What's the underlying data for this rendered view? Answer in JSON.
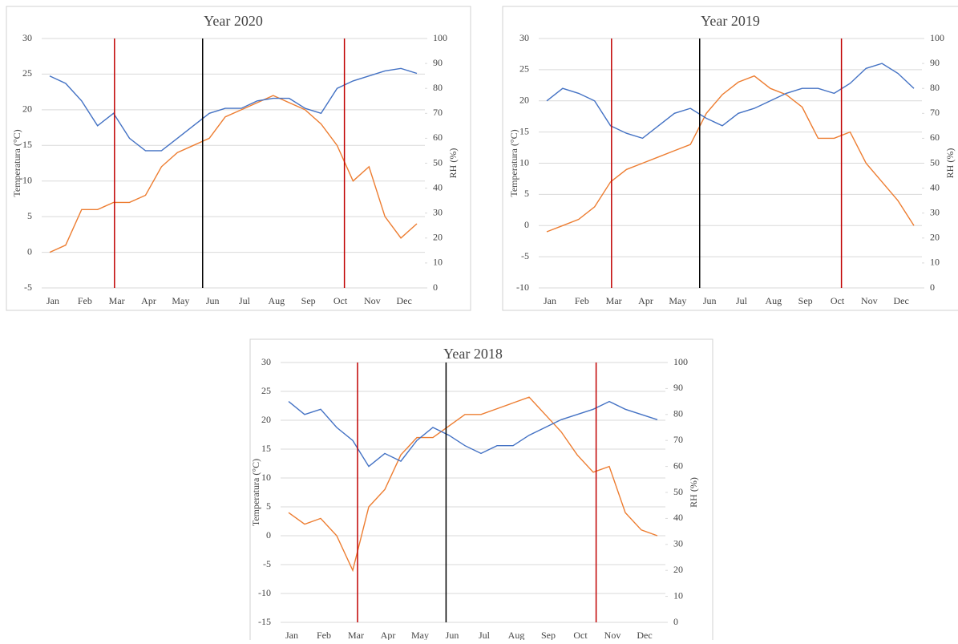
{
  "chart_data": [
    {
      "type": "line",
      "title": "Year 2020",
      "ylabel": "Temperatura (°C)",
      "y2label": "RH (%)",
      "categories": [
        "Jan",
        null,
        "Feb",
        null,
        "Mar",
        null,
        "Apr",
        null,
        "May",
        null,
        "Jun",
        null,
        "Jul",
        null,
        "Aug",
        null,
        "Sep",
        null,
        "Oct",
        null,
        "Nov",
        null,
        "Dec",
        null
      ],
      "ylim": [
        -5,
        30
      ],
      "yticks": [
        -5,
        0,
        5,
        10,
        15,
        20,
        25,
        30
      ],
      "y2lim": [
        0,
        100
      ],
      "y2ticks": [
        0,
        10,
        20,
        30,
        40,
        50,
        60,
        70,
        80,
        90,
        100
      ],
      "series": [
        {
          "color": "#ed7d31",
          "values": [
            0,
            1,
            6,
            6,
            7,
            7,
            8,
            12,
            14,
            15,
            16,
            19,
            20,
            21,
            22,
            21,
            20,
            18,
            15,
            10,
            12,
            5,
            2,
            4
          ]
        },
        {
          "color": "#4472c4",
          "axis": "y2",
          "values": [
            85,
            82,
            75,
            65,
            70,
            60,
            55,
            55,
            60,
            65,
            70,
            72,
            72,
            75,
            76,
            76,
            72,
            70,
            80,
            83,
            85,
            87,
            88,
            86
          ]
        }
      ]
    },
    {
      "type": "line",
      "title": "Year 2019",
      "ylabel": "Temperatura (°C)",
      "y2label": "RH (%)",
      "categories": [
        "Jan",
        null,
        "Feb",
        null,
        "Mar",
        null,
        "Apr",
        null,
        "May",
        null,
        "Jun",
        null,
        "Jul",
        null,
        "Aug",
        null,
        "Sep",
        null,
        "Oct",
        null,
        "Nov",
        null,
        "Dec",
        null
      ],
      "ylim": [
        -10,
        30
      ],
      "yticks": [
        -10,
        -5,
        0,
        5,
        10,
        15,
        20,
        25,
        30
      ],
      "y2lim": [
        0,
        100
      ],
      "y2ticks": [
        0,
        10,
        20,
        30,
        40,
        50,
        60,
        70,
        80,
        90,
        100
      ],
      "series": [
        {
          "color": "#ed7d31",
          "values": [
            -1,
            0,
            1,
            3,
            7,
            9,
            10,
            11,
            12,
            13,
            18,
            21,
            23,
            24,
            22,
            21,
            19,
            14,
            14,
            15,
            10,
            7,
            4,
            0
          ]
        },
        {
          "color": "#4472c4",
          "axis": "y2",
          "values": [
            75,
            80,
            78,
            75,
            65,
            62,
            60,
            65,
            70,
            72,
            68,
            65,
            70,
            72,
            75,
            78,
            80,
            80,
            78,
            82,
            88,
            90,
            86,
            80
          ]
        }
      ]
    },
    {
      "type": "line",
      "title": "Year 2018",
      "ylabel": "Temperatura (°C)",
      "y2label": "RH (%)",
      "categories": [
        "Jan",
        null,
        "Feb",
        null,
        "Mar",
        null,
        "Apr",
        null,
        "May",
        null,
        "Jun",
        null,
        "Jul",
        null,
        "Aug",
        null,
        "Sep",
        null,
        "Oct",
        null,
        "Nov",
        null,
        "Dec",
        null
      ],
      "ylim": [
        -15,
        30
      ],
      "yticks": [
        -15,
        -10,
        -5,
        0,
        5,
        10,
        15,
        20,
        25,
        30
      ],
      "y2lim": [
        0,
        100
      ],
      "y2ticks": [
        0,
        10,
        20,
        30,
        40,
        50,
        60,
        70,
        80,
        90,
        100
      ],
      "series": [
        {
          "color": "#ed7d31",
          "values": [
            4,
            2,
            3,
            0,
            -6,
            5,
            8,
            14,
            17,
            17,
            19,
            21,
            21,
            22,
            23,
            24,
            21,
            18,
            14,
            11,
            12,
            4,
            1,
            0
          ]
        },
        {
          "color": "#4472c4",
          "axis": "y2",
          "values": [
            85,
            80,
            82,
            75,
            70,
            60,
            65,
            62,
            70,
            75,
            72,
            68,
            65,
            68,
            68,
            72,
            75,
            78,
            80,
            82,
            85,
            82,
            80,
            78
          ]
        }
      ]
    }
  ]
}
